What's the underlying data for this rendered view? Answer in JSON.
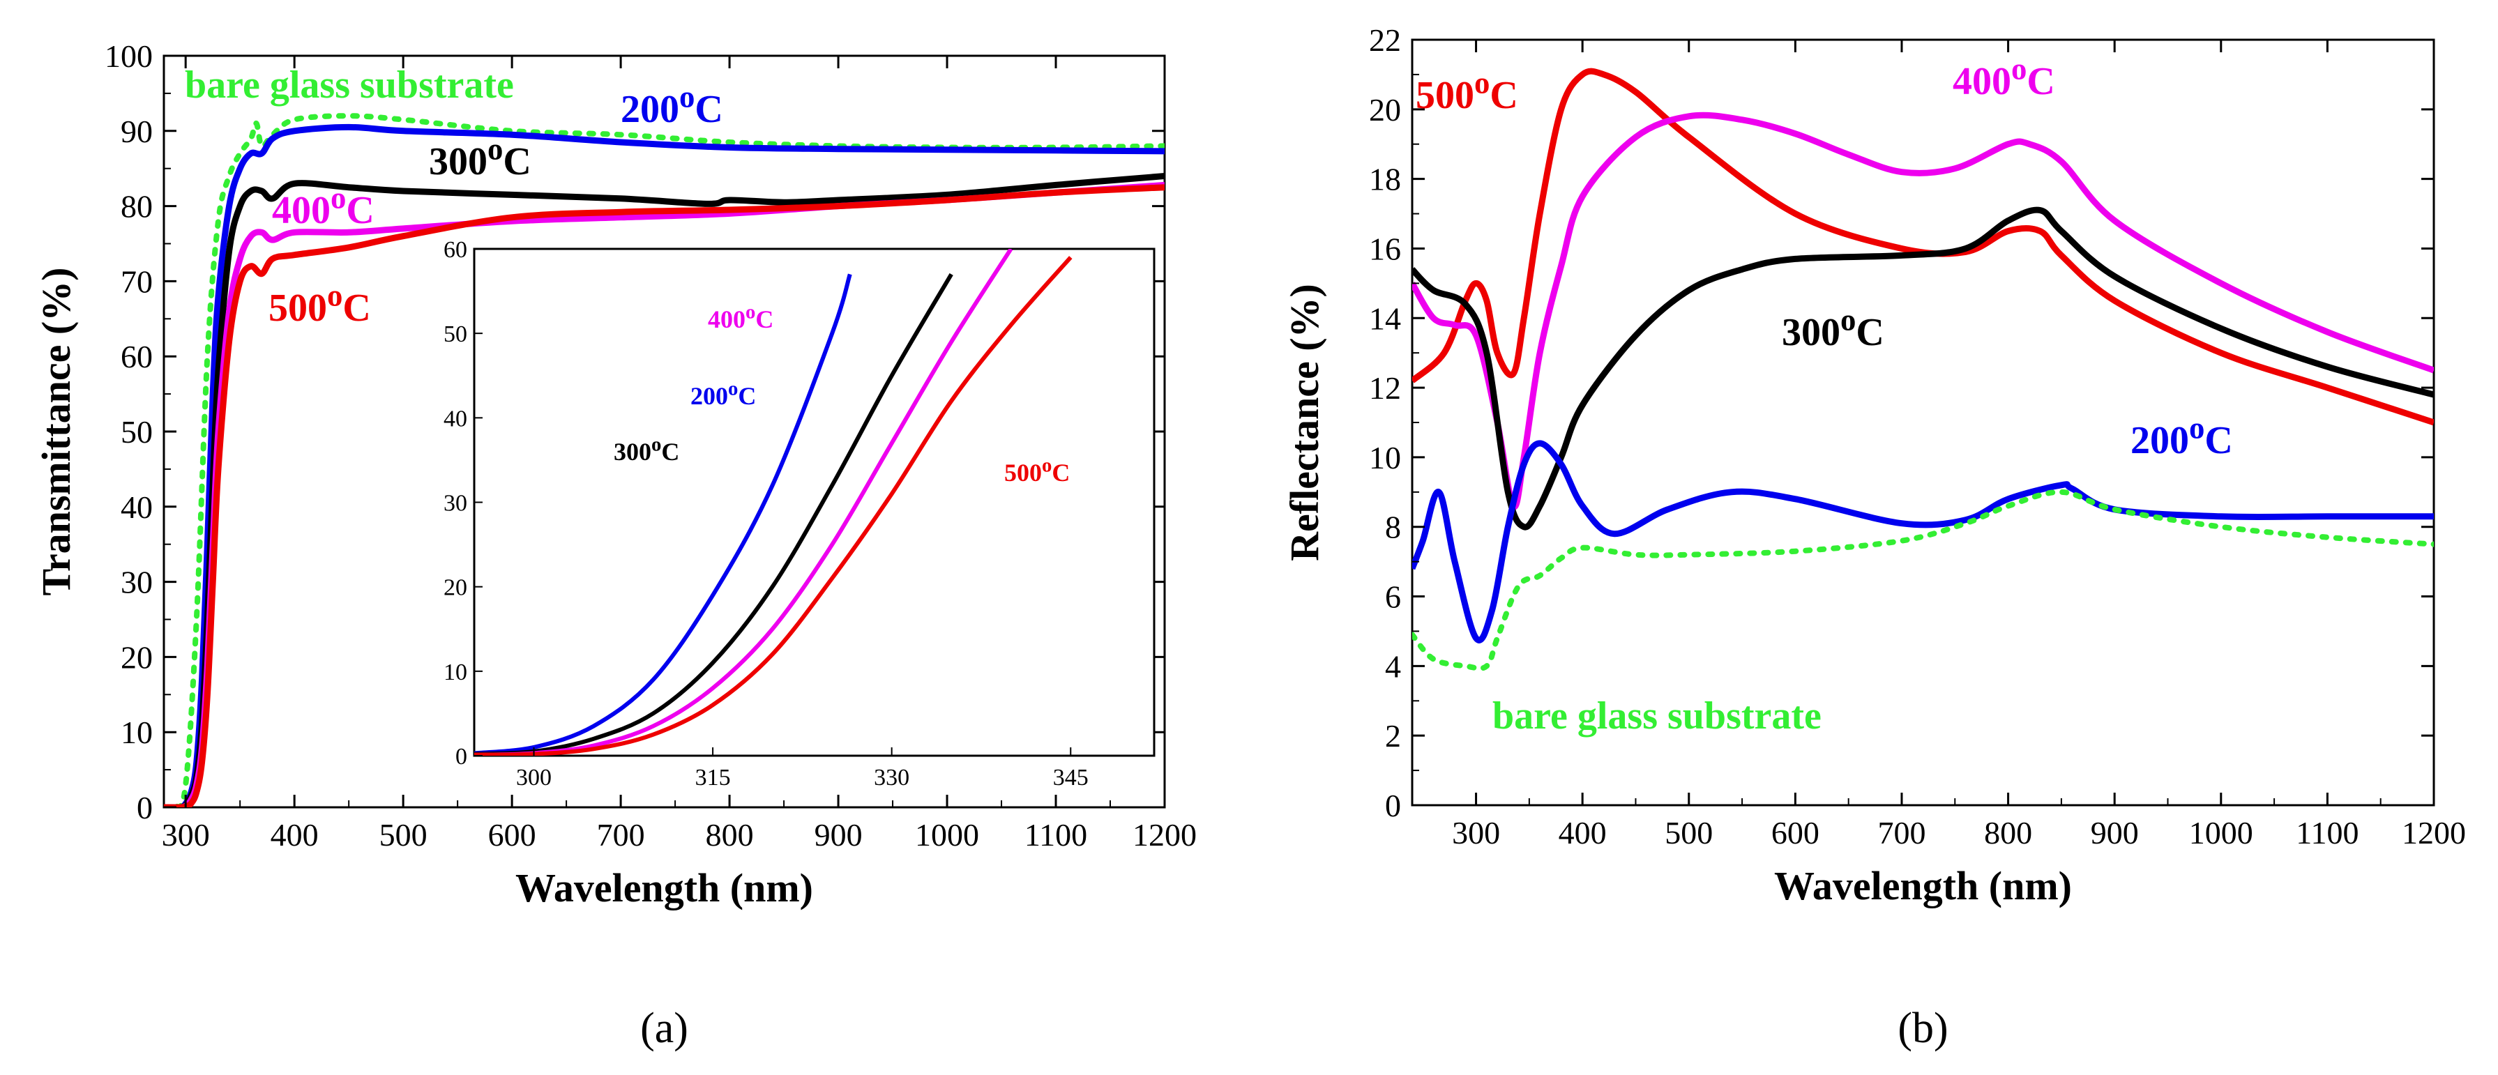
{
  "chart_data": [
    {
      "panel": "a",
      "type": "line",
      "xlabel": "Wavelength (nm)",
      "ylabel": "Transmittance (%)",
      "xlim": [
        280,
        1200
      ],
      "ylim": [
        0,
        100
      ],
      "xticks": [
        300,
        400,
        500,
        600,
        700,
        800,
        900,
        1000,
        1100,
        1200
      ],
      "yticks": [
        0,
        10,
        20,
        30,
        40,
        50,
        60,
        70,
        80,
        90,
        100
      ],
      "panel_label": "(a)",
      "series": [
        {
          "name": "bare glass substrate",
          "label_text": "bare glass substrate",
          "label_sup": "",
          "label_suffix": "",
          "color": "#33ee33",
          "style": "dotted",
          "x": [
            280,
            290,
            300,
            310,
            320,
            330,
            340,
            350,
            360,
            365,
            370,
            380,
            400,
            450,
            500,
            600,
            700,
            800,
            900,
            1000,
            1100,
            1200
          ],
          "y": [
            0,
            0,
            3,
            25,
            60,
            78,
            84,
            87,
            89,
            91,
            88,
            89.5,
            91.5,
            92,
            91.5,
            90,
            89.5,
            88.5,
            88,
            87.8,
            87.8,
            88
          ]
        },
        {
          "name": "200°C",
          "label_text": "200",
          "label_sup": "o",
          "label_suffix": "C",
          "color": "#0000ee",
          "style": "solid",
          "x": [
            280,
            295,
            300,
            305,
            310,
            315,
            320,
            325,
            330,
            340,
            350,
            360,
            370,
            380,
            400,
            450,
            500,
            600,
            700,
            800,
            900,
            1000,
            1100,
            1200
          ],
          "y": [
            0,
            0,
            0.5,
            2,
            6,
            17,
            35,
            55,
            68,
            80,
            85,
            87,
            87,
            89,
            90,
            90.5,
            90,
            89.5,
            88.5,
            87.8,
            87.6,
            87.5,
            87.4,
            87.3
          ]
        },
        {
          "name": "300°C",
          "label_text": "300",
          "label_sup": "o",
          "label_suffix": "C",
          "color": "#000000",
          "style": "solid",
          "x": [
            280,
            295,
            300,
            305,
            310,
            315,
            320,
            325,
            330,
            340,
            350,
            360,
            370,
            380,
            400,
            450,
            500,
            600,
            700,
            780,
            800,
            850,
            900,
            1000,
            1100,
            1200
          ],
          "y": [
            0,
            0,
            0.3,
            1.5,
            4,
            11,
            25,
            43,
            58,
            74,
            80,
            82,
            82,
            81,
            83,
            82.5,
            82,
            81.5,
            81,
            80.3,
            80.8,
            80.5,
            80.8,
            81.5,
            82.8,
            84
          ]
        },
        {
          "name": "400°C",
          "label_text": "400",
          "label_sup": "o",
          "label_suffix": "C",
          "color": "#ee00ee",
          "style": "solid",
          "x": [
            280,
            295,
            300,
            305,
            310,
            315,
            320,
            325,
            330,
            340,
            350,
            360,
            370,
            380,
            400,
            450,
            500,
            600,
            700,
            800,
            900,
            1000,
            1100,
            1200
          ],
          "y": [
            0,
            0,
            0.2,
            1,
            3,
            8,
            19,
            35,
            50,
            66,
            73,
            76,
            76.5,
            75.5,
            76.5,
            76.5,
            77,
            78,
            78.5,
            79,
            80,
            80.8,
            81.8,
            82.8
          ]
        },
        {
          "name": "500°C",
          "label_text": "500",
          "label_sup": "o",
          "label_suffix": "C",
          "color": "#ee0000",
          "style": "solid",
          "x": [
            280,
            295,
            300,
            305,
            310,
            315,
            320,
            325,
            330,
            340,
            350,
            360,
            370,
            380,
            400,
            450,
            500,
            600,
            700,
            800,
            900,
            1000,
            1100,
            1200
          ],
          "y": [
            0,
            0,
            0.1,
            0.5,
            2,
            6,
            15,
            30,
            45,
            62,
            70,
            72,
            71,
            73,
            73.5,
            74.5,
            76,
            78.5,
            79.2,
            79.5,
            80,
            80.8,
            81.8,
            82.5
          ]
        }
      ],
      "inset": {
        "xlim": [
          295,
          352
        ],
        "ylim": [
          0,
          60
        ],
        "xticks": [
          300,
          315,
          330,
          345
        ],
        "yticks": [
          0,
          10,
          20,
          30,
          40,
          50,
          60
        ],
        "series": [
          {
            "name": "200°C",
            "label_text": "200",
            "label_sup": "o",
            "label_suffix": "C",
            "color": "#0000ee",
            "x": [
              295,
              300,
              305,
              310,
              315,
              320,
              325,
              326.5
            ],
            "y": [
              0.3,
              1,
              3.5,
              9,
              19,
              32,
              50,
              57
            ]
          },
          {
            "name": "300°C",
            "label_text": "300",
            "label_sup": "o",
            "label_suffix": "C",
            "color": "#000000",
            "x": [
              295,
              300,
              305,
              310,
              315,
              320,
              325,
              330,
              335
            ],
            "y": [
              0.2,
              0.5,
              2,
              5,
              11,
              20,
              32,
              45,
              57
            ]
          },
          {
            "name": "400°C",
            "label_text": "400",
            "label_sup": "o",
            "label_suffix": "C",
            "color": "#ee00ee",
            "x": [
              295,
              300,
              305,
              310,
              315,
              320,
              325,
              330,
              335,
              340
            ],
            "y": [
              0.1,
              0.3,
              1.2,
              3.5,
              8,
              15,
              25,
              37,
              49,
              60
            ]
          },
          {
            "name": "500°C",
            "label_text": "500",
            "label_sup": "o",
            "label_suffix": "C",
            "color": "#ee0000",
            "x": [
              295,
              300,
              305,
              310,
              315,
              320,
              325,
              330,
              335,
              340,
              345
            ],
            "y": [
              0.1,
              0.2,
              0.8,
              2.5,
              6,
              12,
              21,
              31,
              42,
              51,
              59
            ]
          }
        ]
      }
    },
    {
      "panel": "b",
      "type": "line",
      "xlabel": "Wavelength (nm)",
      "ylabel": "Reflectance (%)",
      "xlim": [
        240,
        1200
      ],
      "ylim": [
        0,
        22
      ],
      "xticks": [
        300,
        400,
        500,
        600,
        700,
        800,
        900,
        1000,
        1100,
        1200
      ],
      "yticks": [
        0,
        2,
        4,
        6,
        8,
        10,
        12,
        14,
        16,
        18,
        20,
        22
      ],
      "panel_label": "(b)",
      "series": [
        {
          "name": "500°C",
          "label_text": "500",
          "label_sup": "o",
          "label_suffix": "C",
          "color": "#ee0000",
          "style": "solid",
          "x": [
            240,
            270,
            290,
            300,
            310,
            320,
            335,
            345,
            360,
            380,
            400,
            420,
            450,
            500,
            600,
            700,
            760,
            800,
            830,
            850,
            900,
            1000,
            1100,
            1200
          ],
          "y": [
            12.2,
            13,
            14.5,
            15,
            14.5,
            13,
            12.4,
            14,
            17,
            20,
            21,
            21,
            20.5,
            19.2,
            17,
            16,
            15.9,
            16.5,
            16.5,
            15.8,
            14.5,
            13,
            12,
            11
          ]
        },
        {
          "name": "400°C",
          "label_text": "400",
          "label_sup": "o",
          "label_suffix": "C",
          "color": "#ee00ee",
          "style": "solid",
          "x": [
            240,
            260,
            280,
            300,
            320,
            335,
            345,
            360,
            380,
            400,
            450,
            500,
            550,
            600,
            650,
            700,
            750,
            800,
            820,
            850,
            900,
            1000,
            1100,
            1200
          ],
          "y": [
            15,
            14,
            13.8,
            13.5,
            11,
            8.6,
            10,
            13,
            15.5,
            17.5,
            19.2,
            19.8,
            19.7,
            19.3,
            18.7,
            18.2,
            18.3,
            19,
            19,
            18.5,
            16.8,
            15,
            13.6,
            12.5
          ]
        },
        {
          "name": "300°C",
          "label_text": "300",
          "label_sup": "o",
          "label_suffix": "C",
          "color": "#000000",
          "style": "solid",
          "x": [
            240,
            260,
            290,
            310,
            330,
            345,
            360,
            380,
            400,
            450,
            500,
            550,
            600,
            700,
            760,
            800,
            830,
            850,
            900,
            1000,
            1100,
            1200
          ],
          "y": [
            15.4,
            14.8,
            14.4,
            13,
            9,
            8,
            8.6,
            10,
            11.5,
            13.5,
            14.8,
            15.4,
            15.7,
            15.8,
            16,
            16.8,
            17.1,
            16.5,
            15.2,
            13.7,
            12.6,
            11.8
          ]
        },
        {
          "name": "200°C",
          "label_text": "200",
          "label_sup": "o",
          "label_suffix": "C",
          "color": "#0000ee",
          "style": "solid",
          "x": [
            240,
            250,
            265,
            280,
            300,
            315,
            330,
            345,
            360,
            380,
            400,
            430,
            480,
            540,
            600,
            700,
            760,
            800,
            850,
            860,
            900,
            1000,
            1100,
            1200
          ],
          "y": [
            6.8,
            7.6,
            9,
            7,
            4.8,
            5.6,
            8,
            9.8,
            10.4,
            9.8,
            8.6,
            7.8,
            8.5,
            9,
            8.8,
            8.1,
            8.2,
            8.8,
            9.2,
            9.1,
            8.5,
            8.3,
            8.3,
            8.3
          ]
        },
        {
          "name": "bare glass substrate",
          "label_text": "bare glass substrate",
          "label_sup": "",
          "label_suffix": "",
          "color": "#33ee33",
          "style": "dotted",
          "x": [
            240,
            260,
            290,
            310,
            320,
            340,
            360,
            380,
            400,
            450,
            500,
            600,
            700,
            760,
            800,
            850,
            900,
            1000,
            1100,
            1200
          ],
          "y": [
            4.9,
            4.2,
            4,
            4,
            4.8,
            6.3,
            6.6,
            7.1,
            7.4,
            7.2,
            7.2,
            7.3,
            7.6,
            8.1,
            8.6,
            9,
            8.5,
            8,
            7.7,
            7.5
          ]
        }
      ]
    }
  ]
}
